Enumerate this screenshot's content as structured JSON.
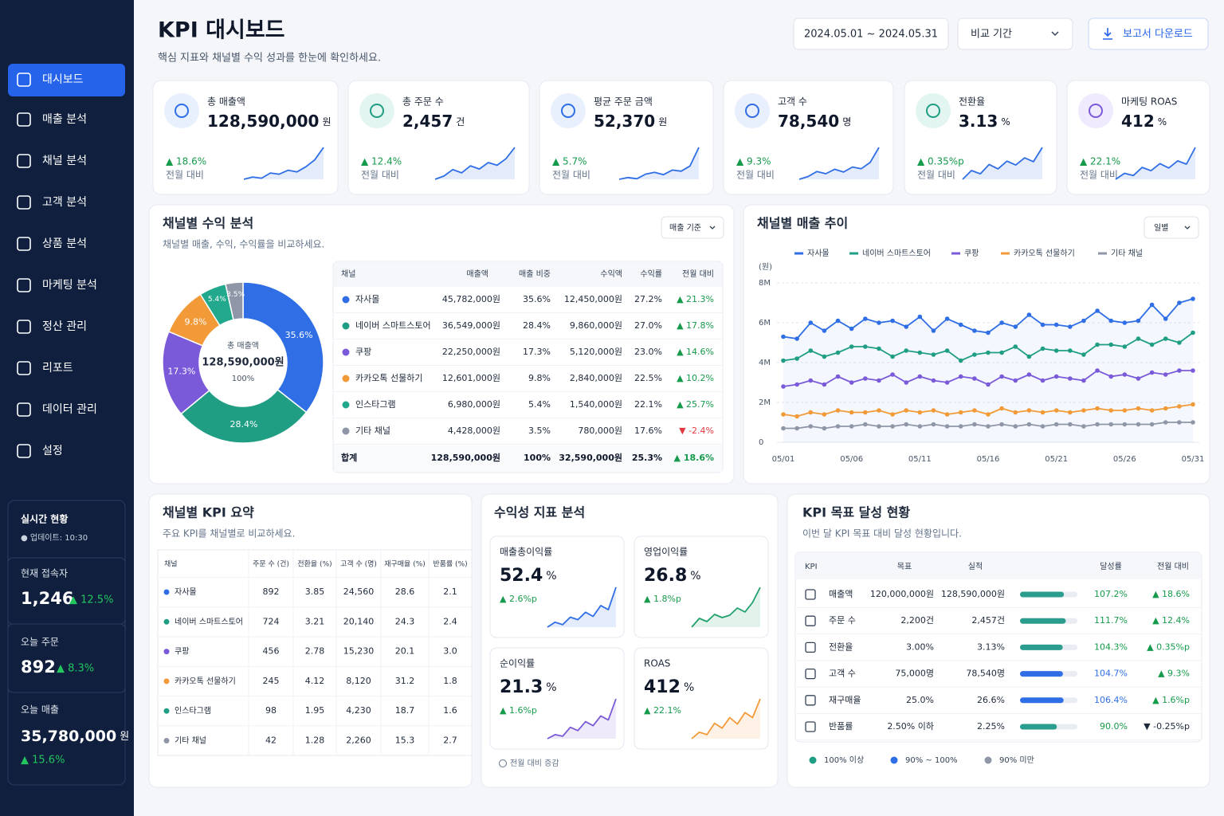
{
  "sidebar": {
    "menu": [
      "대시보드",
      "매출 분석",
      "채널 분석",
      "고객 분석",
      "상품 분석",
      "마케팅 분석",
      "정산 관리",
      "리포트",
      "데이터 관리",
      "설정"
    ],
    "realtime": {
      "title": "실시간 현황",
      "updated": "● 업데이트: 10:30",
      "visitors_label": "현재 접속자",
      "visitors": "1,246",
      "visitors_change": "▲ 12.5%",
      "orders_label": "오늘 주문",
      "orders": "892",
      "orders_change": "▲ 8.3%",
      "sales_label": "오늘 매출",
      "sales": "35,780,000",
      "sales_unit": "원",
      "sales_change": "▲ 15.6%"
    }
  },
  "header": {
    "title": "KPI 대시보드",
    "subtitle": "핵심 지표와 채널별 수익 성과를 한눈에 확인하세요.",
    "date_range": "2024.05.01 ~ 2024.05.31",
    "compare": "비교 기간",
    "download": "보고서 다운로드"
  },
  "kpi_cards": [
    {
      "label": "총 매출액",
      "value": "128,590,000",
      "unit": "원",
      "change": "▲ 18.6%",
      "compare": "전월 대비",
      "color": "#2f6ee5",
      "trend": [
        3,
        3.4,
        3.2,
        4.1,
        3.9,
        4.6,
        4.3,
        5.2,
        6.4,
        8.6
      ]
    },
    {
      "label": "총 주문 수",
      "value": "2,457",
      "unit": "건",
      "change": "▲ 12.4%",
      "compare": "전월 대비",
      "color": "#2f6ee5",
      "trend": [
        3,
        3.6,
        4.8,
        4.2,
        5.5,
        4.9,
        6.1,
        5.6,
        6.8,
        8.9
      ]
    },
    {
      "label": "평균 주문 금액",
      "value": "52,370",
      "unit": "원",
      "change": "▲ 5.7%",
      "compare": "전월 대비",
      "color": "#2f6ee5",
      "trend": [
        3,
        3.3,
        3.1,
        3.9,
        4.2,
        3.8,
        4.6,
        4.4,
        5.3,
        8.5
      ]
    },
    {
      "label": "고객 수",
      "value": "78,540",
      "unit": "명",
      "change": "▲ 9.3%",
      "compare": "전월 대비",
      "color": "#2f6ee5",
      "trend": [
        3,
        3.5,
        4.4,
        4.0,
        4.8,
        4.3,
        5.2,
        4.9,
        6.0,
        8.7
      ]
    },
    {
      "label": "전환율",
      "value": "3.13",
      "unit": "%",
      "change": "▲ 0.35%p",
      "compare": "전월 대비",
      "color": "#2f6ee5",
      "trend": [
        3,
        4.6,
        4.0,
        5.7,
        4.9,
        6.3,
        5.6,
        6.9,
        6.2,
        8.8
      ]
    },
    {
      "label": "마케팅 ROAS",
      "value": "412",
      "unit": "%",
      "change": "▲ 22.1%",
      "compare": "전월 대비",
      "color": "#2f6ee5",
      "trend": [
        3,
        4.1,
        3.7,
        5.2,
        4.6,
        5.9,
        5.1,
        6.4,
        5.8,
        8.9
      ]
    }
  ],
  "channel_revenue": {
    "title": "채널별 수익 분석",
    "subtitle": "채널별 매출, 수익, 수익률을 비교하세요.",
    "basis": "매출 기준",
    "donut": {
      "type": "pie",
      "categories": [
        "자사몰",
        "네이버 스마트스토어",
        "쿠팡",
        "카카오톡 선물하기",
        "인스타그램",
        "기타 채널"
      ],
      "values": [
        35.6,
        28.4,
        17.3,
        9.8,
        5.4,
        3.5
      ],
      "value_labels": [
        "35.6%",
        "28.4%",
        "17.3%",
        "9.8%",
        "5.4%",
        "3.5%"
      ],
      "colors": [
        "#2f6ee5",
        "#1f9e84",
        "#7a5ad8",
        "#f29a38",
        "#22a88c",
        "#8e96a8"
      ],
      "center_label": "총 매출액",
      "center_value": "128,590,000원",
      "center_percent": "100%"
    },
    "table": {
      "columns": [
        "채널",
        "매출액",
        "매출 비중",
        "수익액",
        "수익률",
        "전월 대비"
      ],
      "rows": [
        [
          "자사몰",
          "45,782,000원",
          "35.6%",
          "12,450,000원",
          "27.2%",
          "▲ 21.3%"
        ],
        [
          "네이버 스마트스토어",
          "36,549,000원",
          "28.4%",
          "9,860,000원",
          "27.0%",
          "▲ 17.8%"
        ],
        [
          "쿠팡",
          "22,250,000원",
          "17.3%",
          "5,120,000원",
          "23.0%",
          "▲ 14.6%"
        ],
        [
          "카카오톡 선물하기",
          "12,601,000원",
          "9.8%",
          "2,840,000원",
          "22.5%",
          "▲ 10.2%"
        ],
        [
          "인스타그램",
          "6,980,000원",
          "5.4%",
          "1,540,000원",
          "22.1%",
          "▲ 25.7%"
        ],
        [
          "기타 채널",
          "4,428,000원",
          "3.5%",
          "780,000원",
          "17.6%",
          "▼ -2.4%"
        ]
      ],
      "total": [
        "합계",
        "128,590,000원",
        "100%",
        "32,590,000원",
        "25.3%",
        "▲ 18.6%"
      ]
    }
  },
  "channel_trend": {
    "type": "line",
    "title": "채널별 매출 추이",
    "period": "일별",
    "unit_label": "(원)",
    "categories": [
      "05/01",
      null,
      null,
      null,
      null,
      "05/06",
      null,
      null,
      null,
      null,
      "05/11",
      null,
      null,
      null,
      null,
      "05/16",
      null,
      null,
      null,
      null,
      "05/21",
      null,
      null,
      null,
      null,
      "05/26",
      null,
      null,
      null,
      null,
      "05/31"
    ],
    "ylim": [
      0,
      8000000
    ],
    "yticks": [
      0,
      {
        "value": 2000000,
        "label": "2M"
      },
      {
        "value": 4000000,
        "label": "4M"
      },
      {
        "value": 6000000,
        "label": "6M"
      },
      {
        "value": 8000000,
        "label": "8M"
      }
    ],
    "grid": true,
    "series": [
      {
        "name": "자사몰",
        "color": "#2f6ee5",
        "values": [
          5300000,
          5200000,
          6000000,
          5600000,
          6100000,
          5700000,
          6200000,
          6000000,
          6100000,
          5800000,
          6300000,
          5600000,
          6200000,
          5900000,
          5600000,
          5500000,
          6000000,
          5800000,
          6400000,
          5900000,
          5900000,
          5800000,
          6100000,
          6600000,
          6100000,
          6000000,
          6100000,
          6900000,
          6200000,
          7000000,
          7200000
        ]
      },
      {
        "name": "네이버 스마트스토어",
        "color": "#1f9e84",
        "values": [
          4100000,
          4200000,
          4600000,
          4300000,
          4500000,
          4800000,
          4800000,
          4700000,
          4300000,
          4600000,
          4500000,
          4400000,
          4600000,
          4100000,
          4400000,
          4500000,
          4500000,
          4800000,
          4300000,
          4700000,
          4600000,
          4600000,
          4400000,
          4900000,
          4900000,
          4800000,
          5200000,
          4900000,
          5200000,
          5000000,
          5500000
        ]
      },
      {
        "name": "쿠팡",
        "color": "#7a5ad8",
        "values": [
          2800000,
          2900000,
          3100000,
          2900000,
          3300000,
          3000000,
          3200000,
          3100000,
          3400000,
          3000000,
          3300000,
          3100000,
          3000000,
          3300000,
          3200000,
          2900000,
          3300000,
          3100000,
          3400000,
          3100000,
          3300000,
          3200000,
          3100000,
          3600000,
          3300000,
          3400000,
          3200000,
          3500000,
          3400000,
          3600000,
          3600000
        ]
      },
      {
        "name": "카카오톡 선물하기",
        "color": "#f29a38",
        "values": [
          1400000,
          1300000,
          1500000,
          1400000,
          1600000,
          1500000,
          1500000,
          1600000,
          1400000,
          1600000,
          1500000,
          1600000,
          1400000,
          1500000,
          1600000,
          1400000,
          1700000,
          1500000,
          1600000,
          1500000,
          1600000,
          1500000,
          1600000,
          1700000,
          1600000,
          1600000,
          1700000,
          1600000,
          1700000,
          1800000,
          1900000
        ]
      },
      {
        "name": "기타 채널",
        "color": "#8e96a8",
        "values": [
          700000,
          700000,
          800000,
          700000,
          800000,
          800000,
          900000,
          800000,
          800000,
          900000,
          800000,
          900000,
          800000,
          800000,
          900000,
          800000,
          900000,
          800000,
          900000,
          800000,
          900000,
          900000,
          800000,
          900000,
          900000,
          900000,
          900000,
          900000,
          1000000,
          1000000,
          1000000
        ]
      }
    ]
  },
  "channel_kpi": {
    "title": "채널별 KPI 요약",
    "subtitle": "주요 KPI를 채널별로 비교하세요.",
    "columns": [
      "채널",
      "주문 수 (건)",
      "전환율 (%)",
      "고객 수 (명)",
      "재구매율 (%)",
      "반품률 (%)"
    ],
    "colors": [
      "#2f6ee5",
      "#1f9e84",
      "#7a5ad8",
      "#f29a38",
      "#1f9e84",
      "#8e96a8"
    ],
    "rows": [
      [
        "자사몰",
        "892",
        "3.85",
        "24,560",
        "28.6",
        "2.1"
      ],
      [
        "네이버 스마트스토어",
        "724",
        "3.21",
        "20,140",
        "24.3",
        "2.4"
      ],
      [
        "쿠팡",
        "456",
        "2.78",
        "15,230",
        "20.1",
        "3.0"
      ],
      [
        "카카오톡 선물하기",
        "245",
        "4.12",
        "8,120",
        "31.2",
        "1.8"
      ],
      [
        "인스타그램",
        "98",
        "1.95",
        "4,230",
        "18.7",
        "1.6"
      ],
      [
        "기타 채널",
        "42",
        "1.28",
        "2,260",
        "15.3",
        "2.7"
      ]
    ]
  },
  "profitability": {
    "title": "수익성 지표 분석",
    "note": "전월 대비 증감",
    "metrics": [
      {
        "label": "매출총이익률",
        "value": "52.4",
        "unit": "%",
        "change": "▲ 2.6%p",
        "color": "#2f6ee5",
        "trend": [
          2,
          2.6,
          2.3,
          3.2,
          2.9,
          3.8,
          3.3,
          4.6,
          4.1,
          6.8
        ]
      },
      {
        "label": "영업이익률",
        "value": "26.8",
        "unit": "%",
        "change": "▲ 1.8%p",
        "color": "#22a06b",
        "trend": [
          2,
          3.1,
          2.7,
          3.6,
          3.2,
          3.5,
          4.4,
          3.9,
          5.1,
          7.0
        ]
      },
      {
        "label": "순이익률",
        "value": "21.3",
        "unit": "%",
        "change": "▲ 1.6%p",
        "color": "#7a5ad8",
        "trend": [
          2,
          2.5,
          2.3,
          3.4,
          3.0,
          4.1,
          3.6,
          4.8,
          4.3,
          6.9
        ]
      },
      {
        "label": "ROAS",
        "value": "412",
        "unit": "%",
        "change": "▲ 22.1%",
        "color": "#f29a38",
        "trend": [
          2,
          2.8,
          2.5,
          3.9,
          3.3,
          4.6,
          3.8,
          5.2,
          4.6,
          6.9
        ]
      }
    ]
  },
  "kpi_goals": {
    "title": "KPI 목표 달성 현황",
    "subtitle": "이번 달 KPI 목표 대비 달성 현황입니다.",
    "columns": [
      "KPI",
      "목표",
      "실적",
      "달성률",
      "전월 대비"
    ],
    "rows": [
      {
        "name": "매출액",
        "target": "120,000,000원",
        "actual": "128,590,000원",
        "rate": 107.2,
        "rate_label": "107.2%",
        "change": "▲ 18.6%",
        "color": "#2a9d8f"
      },
      {
        "name": "주문 수",
        "target": "2,200건",
        "actual": "2,457건",
        "rate": 111.7,
        "rate_label": "111.7%",
        "change": "▲ 12.4%",
        "color": "#2a9d8f"
      },
      {
        "name": "전환율",
        "target": "3.00%",
        "actual": "3.13%",
        "rate": 104.3,
        "rate_label": "104.3%",
        "change": "▲ 0.35%p",
        "color": "#2a9d8f"
      },
      {
        "name": "고객 수",
        "target": "75,000명",
        "actual": "78,540명",
        "rate": 104.7,
        "rate_label": "104.7%",
        "change": "▲ 9.3%",
        "color": "#2f6ee5"
      },
      {
        "name": "재구매율",
        "target": "25.0%",
        "actual": "26.6%",
        "rate": 106.4,
        "rate_label": "106.4%",
        "change": "▲ 1.6%p",
        "color": "#2f6ee5"
      },
      {
        "name": "반품률",
        "target": "2.50% 이하",
        "actual": "2.25%",
        "rate": 90.0,
        "rate_label": "90.0%",
        "change": "▼ -0.25%p",
        "color": "#2a9d8f"
      }
    ],
    "legend": [
      {
        "label": "100% 이상",
        "color": "#1f9e84"
      },
      {
        "label": "90% ~ 100%",
        "color": "#2f6ee5"
      },
      {
        "label": "90% 미만",
        "color": "#8e96a8"
      }
    ]
  }
}
